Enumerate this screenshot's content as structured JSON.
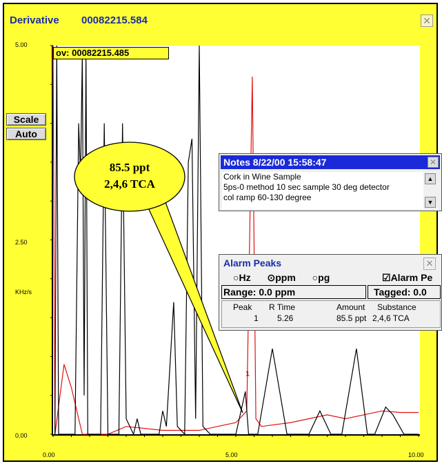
{
  "window": {
    "title": "Derivative",
    "file_id": "00082215.584",
    "close_icon": "close-icon"
  },
  "overlay_label": "ov: 00082215.485",
  "buttons": {
    "scale": "Scale",
    "auto": "Auto"
  },
  "y_axis": {
    "unit": "KHz/s",
    "ticks": [
      "5.00",
      "2.50",
      "0.00"
    ]
  },
  "x_axis": {
    "ticks": [
      "0.00",
      "5.00",
      "10.00"
    ]
  },
  "callout": {
    "line1": "85.5 ppt",
    "line2": "2,4,6 TCA",
    "peak_marker": "1"
  },
  "notes": {
    "title": "Notes 8/22/00 15:58:47",
    "lines": [
      "Cork in Wine Sample",
      "5ps-0 method 10 sec sample 30 deg detector",
      "col ramp 60-130 degree"
    ]
  },
  "alarm_peaks": {
    "title": "Alarm Peaks",
    "units": [
      "Hz",
      "ppm",
      "pg"
    ],
    "selected_unit": "ppm",
    "alarm_checkbox": "Alarm Pe",
    "range": "Range: 0.0 ppm",
    "tagged": "Tagged: 0.0",
    "columns": [
      "Peak",
      "R Time",
      "Amount",
      "Substance"
    ],
    "rows": [
      {
        "peak": "1",
        "rtime": "5.26",
        "amount": "85.5 ppt",
        "substance": "2,4,6 TCA"
      }
    ]
  },
  "chart_data": {
    "type": "line",
    "xlim": [
      0,
      10
    ],
    "ylim": [
      0,
      5
    ],
    "colors": {
      "derivative": "#000000",
      "overlay": "#e01010"
    },
    "series": [
      {
        "points": [
          [
            0.05,
            0.0
          ],
          [
            0.1,
            5.0
          ],
          [
            0.15,
            0.0
          ],
          [
            0.6,
            0.0
          ],
          [
            0.7,
            4.0
          ],
          [
            0.75,
            3.3
          ],
          [
            0.8,
            4.9
          ],
          [
            0.85,
            0.5
          ],
          [
            0.9,
            4.9
          ],
          [
            0.95,
            0.0
          ],
          [
            1.3,
            0.0
          ],
          [
            1.4,
            4.0
          ],
          [
            1.5,
            0.0
          ],
          [
            1.8,
            0.0
          ],
          [
            1.9,
            4.0
          ],
          [
            2.0,
            0.2
          ],
          [
            2.2,
            0.0
          ],
          [
            2.3,
            0.2
          ],
          [
            2.4,
            0.0
          ],
          [
            2.9,
            0.0
          ],
          [
            3.0,
            0.3
          ],
          [
            3.1,
            0.1
          ],
          [
            3.3,
            1.7
          ],
          [
            3.4,
            0.1
          ],
          [
            3.6,
            0.0
          ],
          [
            3.7,
            3.5
          ],
          [
            3.8,
            3.8
          ],
          [
            3.9,
            0.2
          ],
          [
            4.0,
            5.0
          ],
          [
            4.1,
            0.1
          ],
          [
            4.3,
            0.0
          ],
          [
            5.0,
            0.0
          ],
          [
            5.26,
            0.55
          ],
          [
            5.35,
            0.0
          ],
          [
            5.6,
            0.0
          ],
          [
            6.0,
            1.1
          ],
          [
            6.4,
            0.0
          ],
          [
            7.0,
            0.0
          ],
          [
            7.3,
            0.3
          ],
          [
            7.6,
            0.0
          ],
          [
            7.9,
            0.0
          ],
          [
            8.3,
            1.1
          ],
          [
            8.6,
            0.0
          ],
          [
            8.8,
            0.0
          ],
          [
            9.1,
            0.35
          ],
          [
            9.3,
            0.25
          ],
          [
            9.6,
            0.0
          ],
          [
            10.0,
            0.0
          ]
        ]
      },
      {
        "points": [
          [
            0.0,
            5.0
          ],
          [
            0.05,
            0.0
          ],
          [
            0.3,
            0.9
          ],
          [
            0.5,
            0.6
          ],
          [
            0.8,
            0.0
          ],
          [
            1.5,
            0.0
          ],
          [
            2.0,
            0.1
          ],
          [
            3.0,
            0.05
          ],
          [
            4.0,
            0.05
          ],
          [
            4.5,
            0.1
          ],
          [
            5.0,
            0.15
          ],
          [
            5.3,
            0.3
          ],
          [
            5.45,
            4.6
          ],
          [
            5.55,
            0.2
          ],
          [
            5.7,
            0.1
          ],
          [
            6.5,
            0.15
          ],
          [
            7.5,
            0.25
          ],
          [
            8.0,
            0.2
          ],
          [
            8.5,
            0.25
          ],
          [
            9.0,
            0.3
          ],
          [
            9.5,
            0.28
          ],
          [
            10.0,
            0.28
          ]
        ]
      }
    ]
  }
}
